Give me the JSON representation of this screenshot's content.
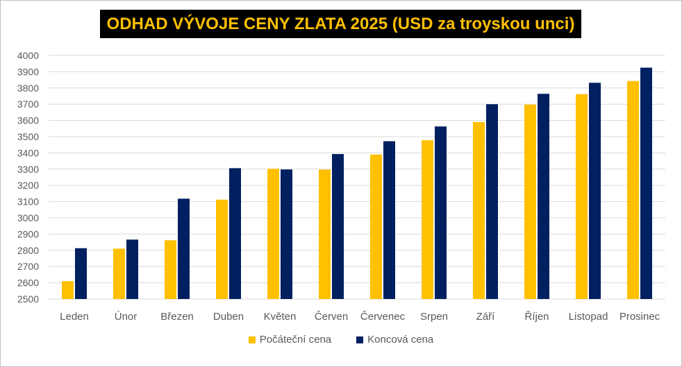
{
  "colors": {
    "title_bg": "#000000",
    "title_text": "#ffc000",
    "start_series": "#ffc000",
    "end_series": "#002060",
    "grid": "#d9d9d9"
  },
  "chart_data": {
    "type": "bar",
    "title": "ODHAD VÝVOJE CENY ZLATA 2025 (USD za troyskou unci)",
    "categories": [
      "Leden",
      "Únor",
      "Březen",
      "Duben",
      "Květen",
      "Červen",
      "Červenec",
      "Srpen",
      "Září",
      "Říjen",
      "Listopad",
      "Prosinec"
    ],
    "series": [
      {
        "name": "Počáteční cena",
        "color": "#ffc000",
        "values": [
          2610,
          2810,
          2862,
          3112,
          3302,
          3297,
          3390,
          3478,
          3590,
          3698,
          3762,
          3843
        ]
      },
      {
        "name": "Koncová cena",
        "color": "#002060",
        "values": [
          2813,
          2866,
          3118,
          3306,
          3298,
          3393,
          3472,
          3563,
          3700,
          3764,
          3832,
          3925
        ]
      }
    ],
    "ylim": [
      2500,
      4000
    ],
    "yticks": [
      "2500",
      "2600",
      "2700",
      "2800",
      "2900",
      "3000",
      "3100",
      "3200",
      "3300",
      "3400",
      "3500",
      "3600",
      "3700",
      "3800",
      "3900",
      "4000"
    ],
    "grid": true,
    "legend_position": "bottom"
  }
}
